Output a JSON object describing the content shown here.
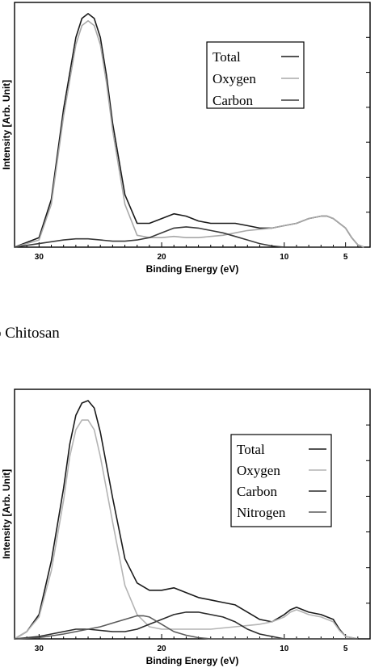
{
  "caption_b": "b Chitosan",
  "chart_data": [
    {
      "type": "line",
      "title": "",
      "xlabel": "Binding Energy (eV)",
      "ylabel": "Intensity [Arb. Unit]",
      "xlim": [
        32,
        3
      ],
      "x_reversed": true,
      "ylim": [
        0,
        100
      ],
      "xticks": [
        30,
        20,
        10,
        5
      ],
      "grid": false,
      "legend_position": "top-right",
      "series": [
        {
          "name": "Total",
          "color": "#1a1a1a",
          "x": [
            32,
            30,
            29,
            28,
            27,
            26.5,
            26,
            25.5,
            25,
            24.5,
            24,
            23,
            22,
            21,
            20,
            19,
            18,
            17,
            16,
            15,
            14,
            13,
            12,
            11,
            10,
            9,
            8,
            7,
            6.5,
            6,
            5,
            4.5,
            4,
            3.5
          ],
          "y": [
            0,
            4,
            20,
            58,
            88,
            96,
            98,
            96,
            88,
            72,
            52,
            22,
            10,
            10,
            12,
            14,
            13,
            11,
            10,
            10,
            10,
            9,
            8,
            8,
            9,
            10,
            12,
            13,
            13,
            12,
            8,
            4,
            1,
            0
          ]
        },
        {
          "name": "Oxygen",
          "color": "#a8a8a8",
          "x": [
            32,
            30,
            29,
            28,
            27,
            26.5,
            26,
            25.5,
            25,
            24.5,
            24,
            23,
            22,
            21,
            20,
            19,
            18,
            17,
            16,
            15,
            14,
            13,
            12,
            11,
            10,
            9,
            8,
            7,
            6.5,
            6,
            5,
            4.5,
            4,
            3.5
          ],
          "y": [
            0,
            3,
            18,
            55,
            85,
            93,
            95,
            93,
            85,
            69,
            49,
            18,
            5,
            4,
            4,
            4.5,
            4,
            4,
            4.5,
            5,
            6,
            7,
            7.5,
            8,
            9,
            10,
            12,
            13,
            13,
            12,
            8,
            4,
            1,
            0
          ]
        },
        {
          "name": "Carbon",
          "color": "#3a3a3a",
          "x": [
            32,
            30,
            28,
            27,
            26,
            25,
            24,
            23,
            22,
            21,
            20,
            19,
            18,
            17,
            16,
            15,
            14,
            13,
            12,
            11,
            10,
            8,
            6,
            4
          ],
          "y": [
            0,
            1.5,
            3,
            3.5,
            3.5,
            3,
            2.5,
            2.5,
            3,
            4,
            6,
            8,
            8.5,
            8,
            7,
            6,
            4.5,
            3,
            1.5,
            0.5,
            0,
            0,
            0,
            0
          ]
        }
      ]
    },
    {
      "type": "line",
      "title": "",
      "xlabel": "Binding Energy (eV)",
      "ylabel": "Intensity [Arb. Unit]",
      "xlim": [
        32,
        3
      ],
      "x_reversed": true,
      "ylim": [
        0,
        100
      ],
      "xticks": [
        30,
        20,
        10,
        5
      ],
      "grid": false,
      "legend_position": "top-right",
      "series": [
        {
          "name": "Total",
          "color": "#1a1a1a",
          "x": [
            32,
            31,
            30,
            29,
            28,
            27.5,
            27,
            26.5,
            26,
            25.5,
            25,
            24,
            23,
            22,
            21,
            20,
            19,
            18,
            17,
            16,
            15,
            14,
            13,
            12,
            11,
            10,
            9.5,
            9,
            8.5,
            8,
            7,
            6,
            5.5,
            5,
            4
          ],
          "y": [
            0,
            3,
            10,
            32,
            62,
            80,
            92,
            97,
            98,
            95,
            85,
            58,
            33,
            23,
            20,
            20,
            21,
            19,
            17,
            16,
            15,
            14,
            11,
            8,
            7,
            10,
            12,
            13,
            12,
            11,
            10,
            8,
            4,
            1,
            0
          ]
        },
        {
          "name": "Oxygen",
          "color": "#b4b4b4",
          "x": [
            32,
            31,
            30,
            29,
            28,
            27.5,
            27,
            26.5,
            26,
            25.5,
            25,
            24,
            23,
            22,
            21,
            20,
            19,
            18,
            17,
            16,
            15,
            14,
            13,
            12,
            11,
            10,
            9.5,
            9,
            8.5,
            8,
            7,
            6,
            5.5,
            5,
            4
          ],
          "y": [
            0,
            3,
            9,
            28,
            57,
            75,
            86,
            90,
            90,
            86,
            75,
            48,
            22,
            10,
            5,
            4,
            4,
            4,
            4,
            4,
            4.5,
            5,
            5.5,
            6,
            7,
            9,
            11,
            12,
            11,
            10,
            9,
            7,
            3.5,
            1,
            0
          ]
        },
        {
          "name": "Carbon",
          "color": "#2a2a2a",
          "x": [
            32,
            30,
            28,
            27,
            26,
            25,
            24,
            23,
            22,
            21,
            20,
            19,
            18,
            17,
            16,
            15,
            14,
            13,
            12,
            11,
            10,
            8,
            6,
            4
          ],
          "y": [
            0,
            1,
            3,
            4,
            4,
            3.5,
            3,
            3,
            4,
            6,
            8,
            10,
            11,
            11,
            10,
            9,
            7,
            4,
            2,
            1,
            0,
            0,
            0,
            0
          ]
        },
        {
          "name": "Nitrogen",
          "color": "#5a5a5a",
          "x": [
            32,
            30,
            28,
            27,
            26,
            25,
            24,
            23,
            22,
            21.5,
            21,
            20,
            19,
            18,
            17,
            16,
            15,
            14,
            13,
            12,
            10,
            8,
            6,
            4
          ],
          "y": [
            0,
            0.5,
            2,
            3,
            4,
            5,
            6.5,
            8,
            9.5,
            9.5,
            9,
            6,
            3,
            1.5,
            0.5,
            0,
            0,
            0,
            0,
            0,
            0,
            0,
            0,
            0
          ]
        }
      ]
    }
  ]
}
